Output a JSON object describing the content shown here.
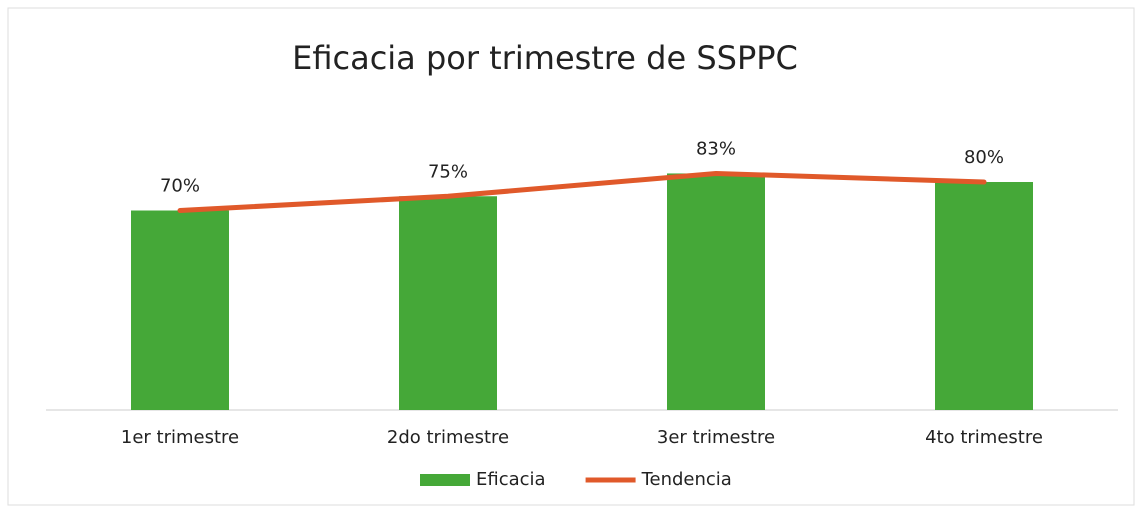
{
  "chart_data": {
    "type": "bar",
    "title": "Eficacia por trimestre de SSPPC",
    "categories": [
      "1er trimestre",
      "2do trimestre",
      "3er trimestre",
      "4to trimestre"
    ],
    "series": [
      {
        "name": "Eficacia",
        "type": "bar",
        "color": "#45a838",
        "values": [
          70,
          75,
          83,
          80
        ],
        "value_labels": [
          "70%",
          "75%",
          "83%",
          "80%"
        ]
      },
      {
        "name": "Tendencia",
        "type": "line",
        "color": "#e0592a",
        "values": [
          70,
          75,
          83,
          80
        ]
      }
    ],
    "ylim": [
      0,
      100
    ],
    "legend": "bottom"
  }
}
